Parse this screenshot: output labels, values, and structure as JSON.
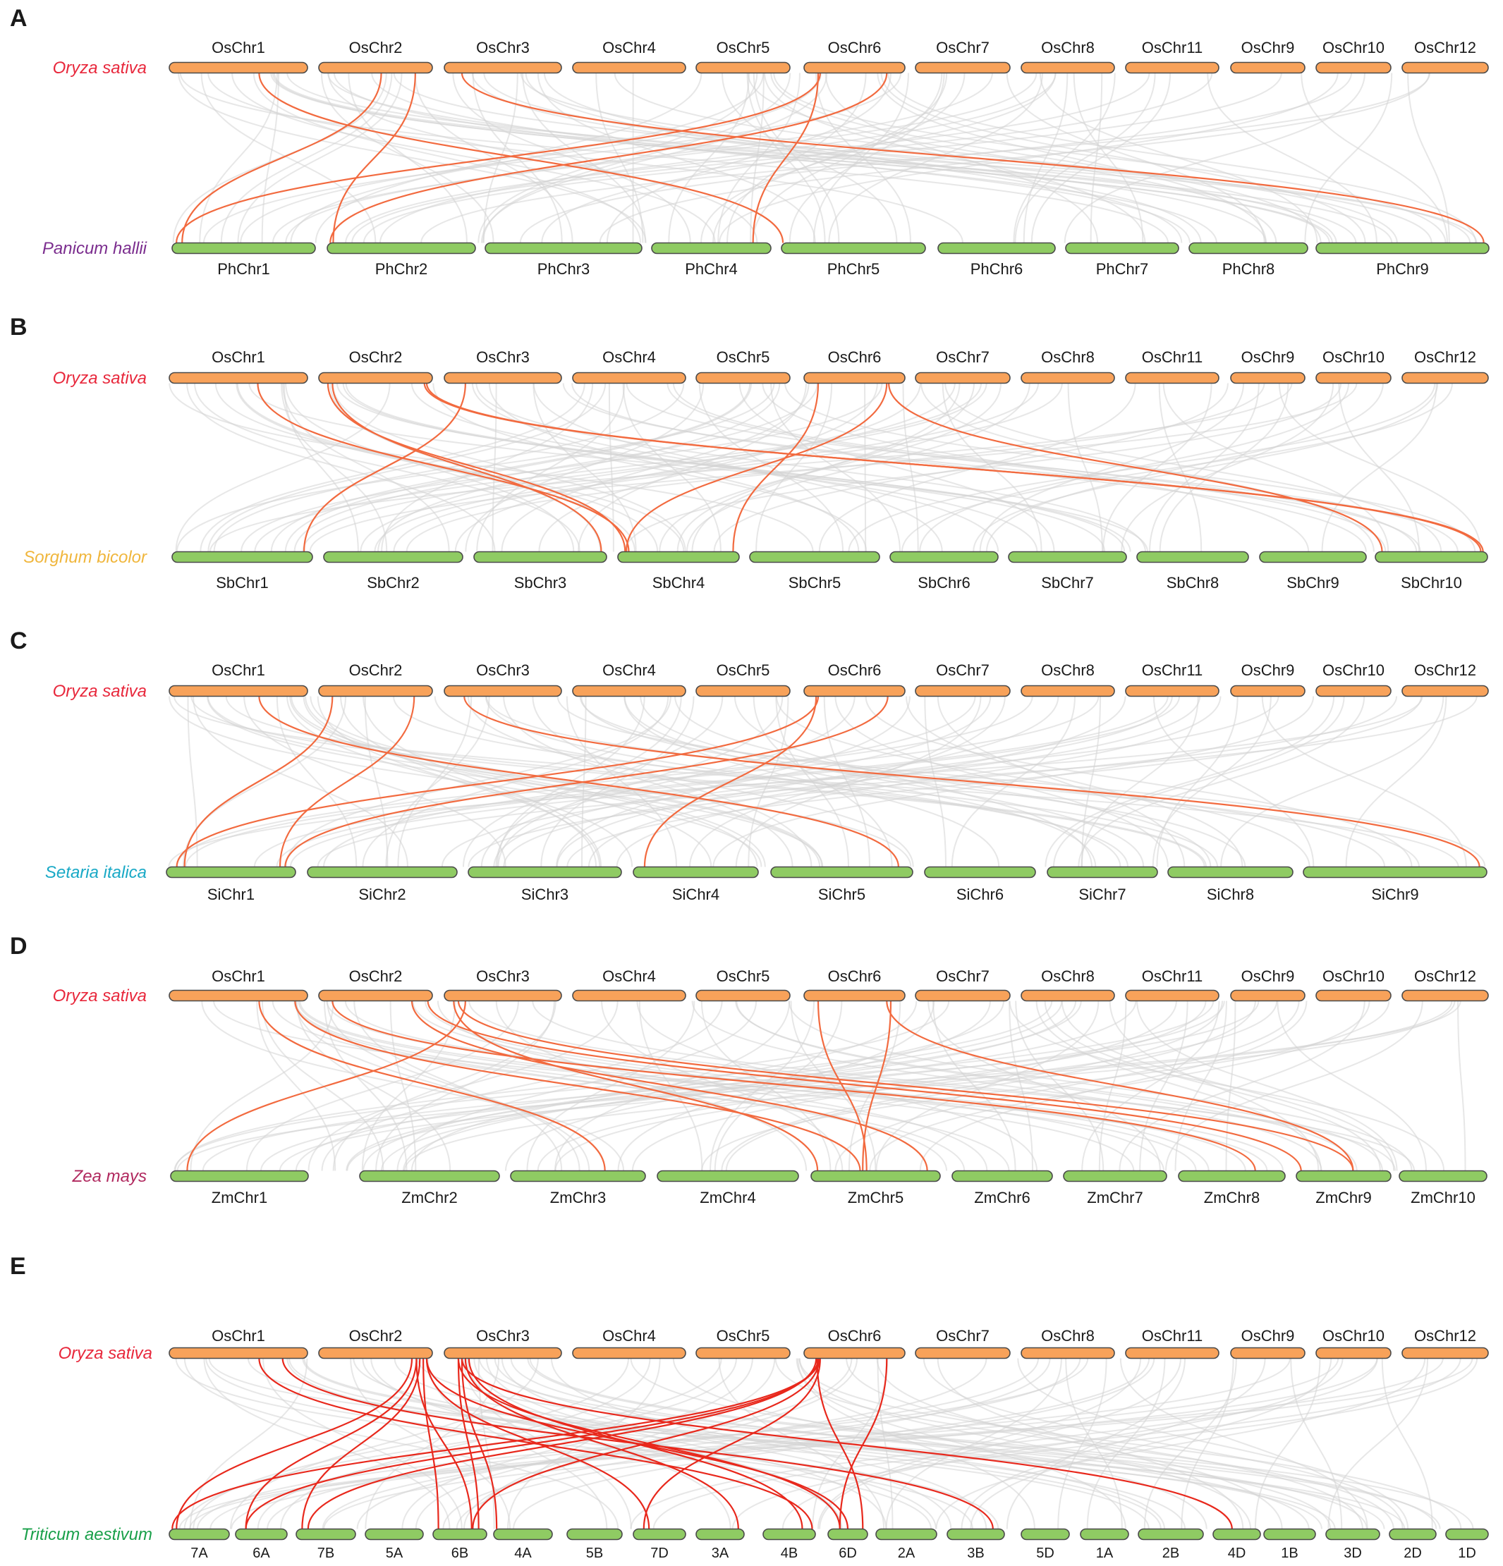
{
  "figure": {
    "colors": {
      "rice_bar": "#f8a25a",
      "partner_bar": "#8fcb63",
      "link": "#f26a3f",
      "link_wheat": "#e8281c",
      "background_link": "#d9d9d9"
    },
    "rice": {
      "species": "Oryza sativa",
      "species_color": "#e8283c",
      "chromosomes": [
        "OsChr1",
        "OsChr2",
        "OsChr3",
        "OsChr4",
        "OsChr5",
        "OsChr6",
        "OsChr7",
        "OsChr8",
        "OsChr11",
        "OsChr9",
        "OsChr10",
        "OsChr12"
      ]
    },
    "panels": [
      {
        "letter": "A",
        "species": "Panicum hallii",
        "species_color": "#7b2d8e",
        "chromosomes": [
          "PhChr1",
          "PhChr2",
          "PhChr3",
          "PhChr4",
          "PhChr5",
          "PhChr6",
          "PhChr7",
          "PhChr8",
          "PhChr9"
        ],
        "links": [
          {
            "os": "OsChr1",
            "partner": "PhChr5"
          },
          {
            "os": "OsChr2",
            "partner": "PhChr1"
          },
          {
            "os": "OsChr2",
            "partner": "PhChr2"
          },
          {
            "os": "OsChr3",
            "partner": "PhChr9"
          },
          {
            "os": "OsChr6",
            "partner": "PhChr1"
          },
          {
            "os": "OsChr6",
            "partner": "PhChr2"
          },
          {
            "os": "OsChr6",
            "partner": "PhChr4"
          }
        ]
      },
      {
        "letter": "B",
        "species": "Sorghum bicolor",
        "species_color": "#f0b63c",
        "chromosomes": [
          "SbChr1",
          "SbChr2",
          "SbChr3",
          "SbChr4",
          "SbChr5",
          "SbChr6",
          "SbChr7",
          "SbChr8",
          "SbChr9",
          "SbChr10"
        ],
        "links": [
          {
            "os": "OsChr1",
            "partner": "SbChr4"
          },
          {
            "os": "OsChr2",
            "partner": "SbChr3"
          },
          {
            "os": "OsChr2",
            "partner": "SbChr4"
          },
          {
            "os": "OsChr2",
            "partner": "SbChr10"
          },
          {
            "os": "OsChr2",
            "partner": "SbChr10"
          },
          {
            "os": "OsChr3",
            "partner": "SbChr1"
          },
          {
            "os": "OsChr6",
            "partner": "SbChr4"
          },
          {
            "os": "OsChr6",
            "partner": "SbChr4"
          },
          {
            "os": "OsChr6",
            "partner": "SbChr10"
          }
        ]
      },
      {
        "letter": "C",
        "species": "Setaria italica",
        "species_color": "#19a9c6",
        "chromosomes": [
          "SiChr1",
          "SiChr2",
          "SiChr3",
          "SiChr4",
          "SiChr5",
          "SiChr6",
          "SiChr7",
          "SiChr8",
          "SiChr9"
        ],
        "links": [
          {
            "os": "OsChr1",
            "partner": "SiChr5"
          },
          {
            "os": "OsChr2",
            "partner": "SiChr1"
          },
          {
            "os": "OsChr2",
            "partner": "SiChr1"
          },
          {
            "os": "OsChr3",
            "partner": "SiChr9"
          },
          {
            "os": "OsChr6",
            "partner": "SiChr1"
          },
          {
            "os": "OsChr6",
            "partner": "SiChr4"
          },
          {
            "os": "OsChr6",
            "partner": "SiChr1"
          }
        ]
      },
      {
        "letter": "D",
        "species": "Zea mays",
        "species_color": "#b0285e",
        "chromosomes": [
          "ZmChr1",
          "ZmChr2",
          "ZmChr3",
          "ZmChr4",
          "ZmChr5",
          "ZmChr6",
          "ZmChr7",
          "ZmChr8",
          "ZmChr9",
          "ZmChr10"
        ],
        "links": [
          {
            "os": "OsChr1",
            "partner": "ZmChr3"
          },
          {
            "os": "OsChr1",
            "partner": "ZmChr5"
          },
          {
            "os": "OsChr2",
            "partner": "ZmChr8"
          },
          {
            "os": "OsChr2",
            "partner": "ZmChr9"
          },
          {
            "os": "OsChr2",
            "partner": "ZmChr5"
          },
          {
            "os": "OsChr3",
            "partner": "ZmChr1"
          },
          {
            "os": "OsChr3",
            "partner": "ZmChr9"
          },
          {
            "os": "OsChr3",
            "partner": "ZmChr5"
          },
          {
            "os": "OsChr6",
            "partner": "ZmChr5"
          },
          {
            "os": "OsChr6",
            "partner": "ZmChr5"
          },
          {
            "os": "OsChr6",
            "partner": "ZmChr9"
          }
        ]
      },
      {
        "letter": "E",
        "species": "Triticum aestivum",
        "species_color": "#1aa04a",
        "chromosomes": [
          "7A",
          "6A",
          "7B",
          "5A",
          "6B",
          "4A",
          "5B",
          "7D",
          "3A",
          "4B",
          "6D",
          "2A",
          "3B",
          "5D",
          "1A",
          "2B",
          "4D",
          "1B",
          "3D",
          "2D",
          "1D"
        ],
        "links": [
          {
            "os": "OsChr1",
            "partner": "4B"
          },
          {
            "os": "OsChr1",
            "partner": "3B"
          },
          {
            "os": "OsChr2",
            "partner": "6B"
          },
          {
            "os": "OsChr2",
            "partner": "7A"
          },
          {
            "os": "OsChr2",
            "partner": "6A"
          },
          {
            "os": "OsChr2",
            "partner": "7B"
          },
          {
            "os": "OsChr2",
            "partner": "6B"
          },
          {
            "os": "OsChr2",
            "partner": "7D"
          },
          {
            "os": "OsChr2",
            "partner": "6D"
          },
          {
            "os": "OsChr3",
            "partner": "4A"
          },
          {
            "os": "OsChr3",
            "partner": "6B"
          },
          {
            "os": "OsChr3",
            "partner": "3A"
          },
          {
            "os": "OsChr3",
            "partner": "4B"
          },
          {
            "os": "OsChr3",
            "partner": "6D"
          },
          {
            "os": "OsChr3",
            "partner": "4D"
          },
          {
            "os": "OsChr6",
            "partner": "7A"
          },
          {
            "os": "OsChr6",
            "partner": "6A"
          },
          {
            "os": "OsChr6",
            "partner": "7B"
          },
          {
            "os": "OsChr6",
            "partner": "6B"
          },
          {
            "os": "OsChr6",
            "partner": "7D"
          },
          {
            "os": "OsChr6",
            "partner": "6D"
          },
          {
            "os": "OsChr6",
            "partner": "6D"
          }
        ]
      }
    ]
  }
}
